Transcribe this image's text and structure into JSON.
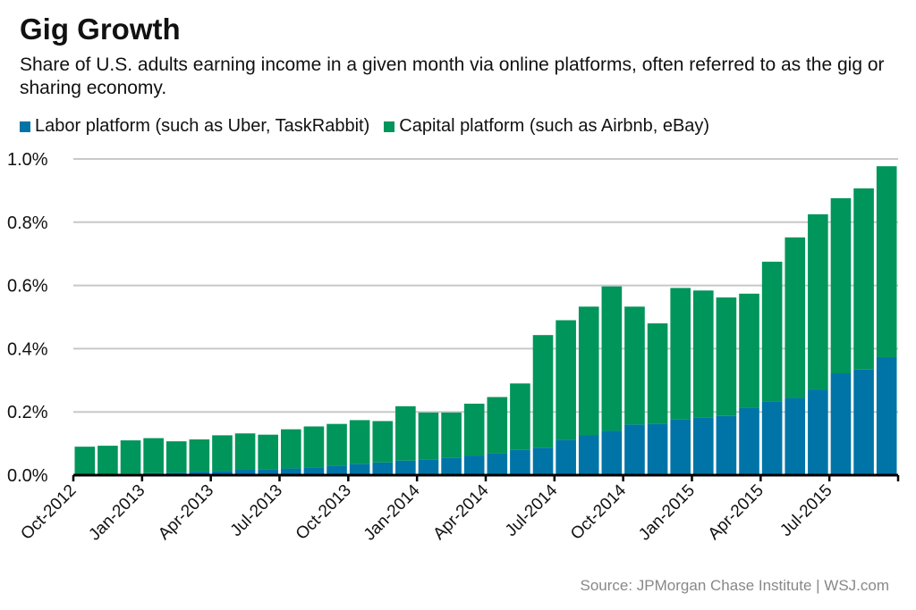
{
  "chart_data": {
    "type": "bar",
    "stacked": true,
    "title": "Gig Growth",
    "subtitle": "Share of U.S. adults earning income in a given month via online platforms, often referred to as the gig or sharing economy.",
    "source": "Source: JPMorgan Chase Institute  |  WSJ.com",
    "legend_position": "top-left",
    "grid": true,
    "ylim": [
      0,
      1.0
    ],
    "yticks": [
      "0.0%",
      "0.2%",
      "0.4%",
      "0.6%",
      "0.8%",
      "1.0%"
    ],
    "xtick_labels": [
      "Oct-2012",
      "Jan-2013",
      "Apr-2013",
      "Jul-2013",
      "Oct-2013",
      "Jan-2014",
      "Apr-2014",
      "Jul-2014",
      "Oct-2014",
      "Jan-2015",
      "Apr-2015",
      "Jul-2015"
    ],
    "categories": [
      "Oct-2012",
      "Nov-2012",
      "Dec-2012",
      "Jan-2013",
      "Feb-2013",
      "Mar-2013",
      "Apr-2013",
      "May-2013",
      "Jun-2013",
      "Jul-2013",
      "Aug-2013",
      "Sep-2013",
      "Oct-2013",
      "Nov-2013",
      "Dec-2013",
      "Jan-2014",
      "Feb-2014",
      "Mar-2014",
      "Apr-2014",
      "May-2014",
      "Jun-2014",
      "Jul-2014",
      "Aug-2014",
      "Sep-2014",
      "Oct-2014",
      "Nov-2014",
      "Dec-2014",
      "Jan-2015",
      "Feb-2015",
      "Mar-2015",
      "Apr-2015",
      "May-2015",
      "Jun-2015",
      "Jul-2015",
      "Aug-2015",
      "Sep-2015"
    ],
    "series": [
      {
        "name": "Labor platform (such as Uber, TaskRabbit)",
        "color": "#0074a6",
        "values": [
          0.003,
          0.004,
          0.005,
          0.006,
          0.008,
          0.011,
          0.013,
          0.017,
          0.018,
          0.021,
          0.025,
          0.03,
          0.035,
          0.04,
          0.046,
          0.05,
          0.054,
          0.062,
          0.068,
          0.08,
          0.087,
          0.112,
          0.127,
          0.14,
          0.16,
          0.162,
          0.177,
          0.183,
          0.187,
          0.213,
          0.234,
          0.243,
          0.271,
          0.322,
          0.334,
          0.373
        ]
      },
      {
        "name": "Capital platform (such as Airbnb, eBay)",
        "color": "#00955a",
        "values": [
          0.087,
          0.089,
          0.105,
          0.111,
          0.099,
          0.102,
          0.113,
          0.115,
          0.11,
          0.124,
          0.129,
          0.132,
          0.139,
          0.131,
          0.172,
          0.148,
          0.144,
          0.164,
          0.179,
          0.21,
          0.356,
          0.378,
          0.406,
          0.457,
          0.373,
          0.318,
          0.415,
          0.401,
          0.375,
          0.361,
          0.441,
          0.509,
          0.554,
          0.554,
          0.573,
          0.604
        ]
      }
    ]
  }
}
